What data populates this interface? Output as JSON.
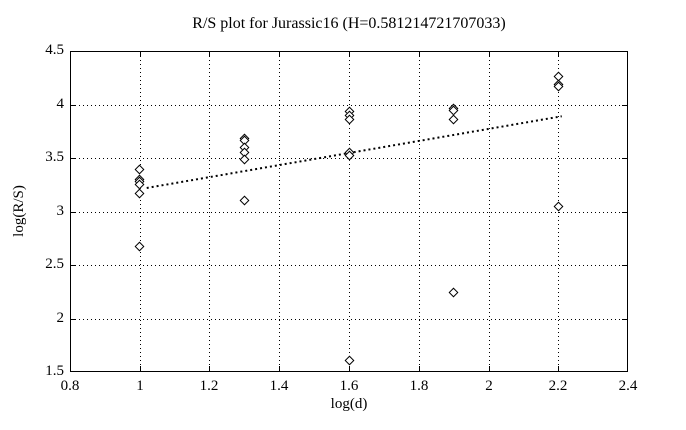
{
  "colors": {
    "foreground": "#000000",
    "background": "#ffffff"
  },
  "chart_data": {
    "type": "scatter",
    "title": "R/S plot for Jurassic16 (H=0.581214721707033)",
    "xlabel": "log(d)",
    "ylabel": "log(R/S)",
    "xlim": [
      0.8,
      2.4
    ],
    "ylim": [
      1.5,
      4.5
    ],
    "xtick_labels": [
      "0.8",
      "1",
      "1.2",
      "1.4",
      "1.6",
      "1.8",
      "2",
      "2.2",
      "2.4"
    ],
    "ytick_labels": [
      "1.5",
      "2",
      "2.5",
      "3",
      "3.5",
      "4",
      "4.5"
    ],
    "grid": true,
    "legend": "none",
    "marker": "open-diamond",
    "series": [
      {
        "name": "rescaled-range-points",
        "points": [
          [
            1.0,
            3.39
          ],
          [
            1.0,
            3.3
          ],
          [
            1.0,
            3.28
          ],
          [
            1.0,
            3.25
          ],
          [
            1.0,
            3.17
          ],
          [
            1.0,
            2.67
          ],
          [
            1.3,
            3.68
          ],
          [
            1.3,
            3.66
          ],
          [
            1.3,
            3.6
          ],
          [
            1.3,
            3.55
          ],
          [
            1.3,
            3.49
          ],
          [
            1.3,
            3.1
          ],
          [
            1.6,
            3.93
          ],
          [
            1.6,
            3.9
          ],
          [
            1.6,
            3.86
          ],
          [
            1.6,
            3.55
          ],
          [
            1.6,
            3.52
          ],
          [
            1.6,
            1.61
          ],
          [
            1.9,
            3.96
          ],
          [
            1.9,
            3.94
          ],
          [
            1.9,
            3.86
          ],
          [
            1.9,
            2.24
          ],
          [
            2.2,
            4.26
          ],
          [
            2.2,
            4.19
          ],
          [
            2.2,
            4.17
          ],
          [
            2.2,
            3.05
          ]
        ]
      }
    ],
    "fit_line": {
      "x1": 1.02,
      "y1": 3.22,
      "x2": 2.21,
      "y2": 3.89,
      "style": "dotted",
      "H": "0.581214721707033"
    }
  }
}
